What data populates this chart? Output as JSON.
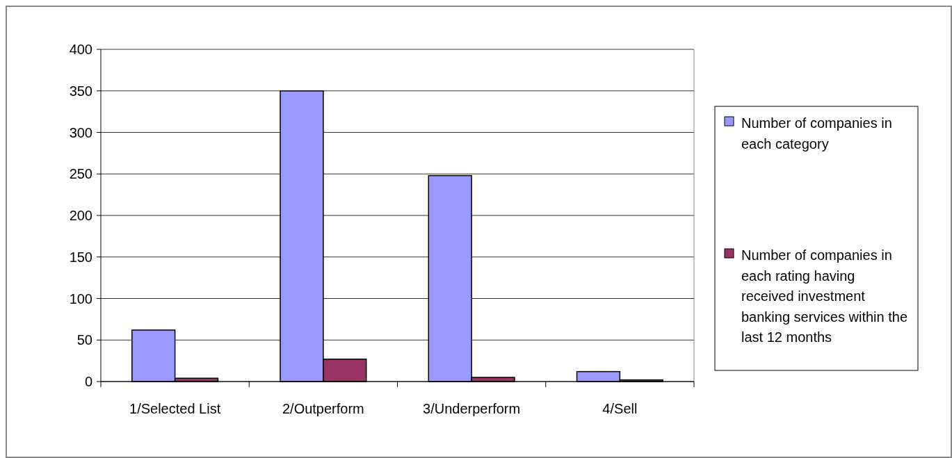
{
  "chart_data": {
    "type": "bar",
    "categories": [
      "1/Selected List",
      "2/Outperform",
      "3/Underperform",
      "4/Sell"
    ],
    "series": [
      {
        "name": "Number of companies in each category",
        "color": "#9999ff",
        "values": [
          62,
          350,
          248,
          12
        ]
      },
      {
        "name": "Number of companies in each rating having received investment banking services within the last 12 months",
        "color": "#993366",
        "values": [
          4,
          27,
          5,
          2
        ]
      }
    ],
    "ylim": [
      0,
      400
    ],
    "yticks": [
      0,
      50,
      100,
      150,
      200,
      250,
      300,
      350,
      400
    ],
    "grid": "y",
    "legend": "right"
  }
}
